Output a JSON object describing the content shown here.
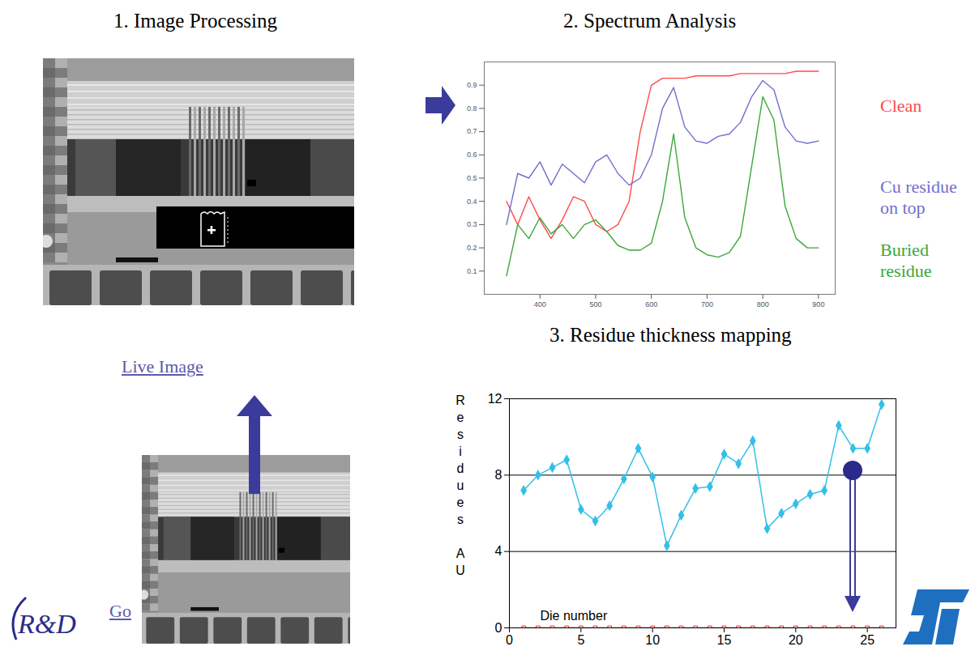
{
  "slide": {
    "titles": [
      "1. Image Processing",
      "2. Spectrum Analysis",
      "3. Residue thickness mapping"
    ],
    "live_image": "Live Image",
    "go_link": "Go",
    "logo_left": "R&D"
  },
  "chart_data": [
    {
      "type": "line",
      "x": [
        340,
        360,
        380,
        400,
        420,
        440,
        460,
        480,
        500,
        520,
        540,
        560,
        580,
        600,
        620,
        640,
        660,
        680,
        700,
        720,
        740,
        760,
        780,
        800,
        820,
        840,
        860,
        880,
        900
      ],
      "xlim": [
        300,
        930
      ],
      "xticks": [
        400,
        500,
        600,
        700,
        800,
        900
      ],
      "ylim": [
        0,
        1
      ],
      "yticks": [
        0.1,
        0.2,
        0.3,
        0.4,
        0.5,
        0.6,
        0.7,
        0.8,
        0.9
      ],
      "legend": "right",
      "series": [
        {
          "name": "Clean",
          "color": "#ff4a4a",
          "values": [
            0.4,
            0.3,
            0.42,
            0.32,
            0.24,
            0.32,
            0.42,
            0.4,
            0.3,
            0.27,
            0.3,
            0.4,
            0.7,
            0.9,
            0.93,
            0.93,
            0.93,
            0.94,
            0.94,
            0.94,
            0.94,
            0.95,
            0.95,
            0.95,
            0.95,
            0.95,
            0.96,
            0.96,
            0.96
          ]
        },
        {
          "name": "Cu residue on top",
          "color": "#6f6fcc",
          "values": [
            0.3,
            0.52,
            0.5,
            0.57,
            0.47,
            0.56,
            0.52,
            0.48,
            0.57,
            0.6,
            0.52,
            0.47,
            0.5,
            0.6,
            0.8,
            0.89,
            0.72,
            0.66,
            0.65,
            0.68,
            0.69,
            0.74,
            0.85,
            0.92,
            0.88,
            0.72,
            0.66,
            0.65,
            0.66
          ]
        },
        {
          "name": "Buried residue",
          "color": "#3aa83a",
          "values": [
            0.08,
            0.3,
            0.24,
            0.33,
            0.26,
            0.3,
            0.24,
            0.3,
            0.32,
            0.27,
            0.21,
            0.19,
            0.19,
            0.22,
            0.4,
            0.69,
            0.33,
            0.2,
            0.17,
            0.16,
            0.18,
            0.25,
            0.55,
            0.85,
            0.75,
            0.38,
            0.24,
            0.2,
            0.2
          ]
        }
      ]
    },
    {
      "type": "line",
      "x_label": "Die number",
      "y_label": "Residues AU",
      "x": [
        1,
        2,
        3,
        4,
        5,
        6,
        7,
        8,
        9,
        10,
        11,
        12,
        13,
        14,
        15,
        16,
        17,
        18,
        19,
        20,
        21,
        22,
        23,
        24,
        25,
        26
      ],
      "xlim": [
        0,
        27
      ],
      "xticks": [
        0,
        5,
        10,
        15,
        20,
        25
      ],
      "ylim": [
        0,
        12
      ],
      "yticks": [
        0,
        4,
        8,
        12
      ],
      "grid": true,
      "series": [
        {
          "color": "#33c0e8",
          "marker": "diamond",
          "values": [
            7.2,
            8.0,
            8.4,
            8.8,
            6.2,
            5.6,
            6.4,
            7.8,
            9.4,
            7.9,
            4.3,
            5.9,
            7.3,
            7.4,
            9.1,
            8.6,
            9.8,
            5.2,
            6.0,
            6.5,
            7.0,
            7.2,
            10.6,
            9.4,
            9.4,
            11.7
          ]
        },
        {
          "color": "#e02020",
          "marker": "square",
          "values": [
            0,
            0,
            0,
            0,
            0,
            0,
            0,
            0,
            0,
            0,
            0,
            0,
            0,
            0,
            0,
            0,
            0,
            0,
            0,
            0,
            0,
            0,
            0,
            0,
            0,
            0
          ]
        }
      ]
    }
  ]
}
